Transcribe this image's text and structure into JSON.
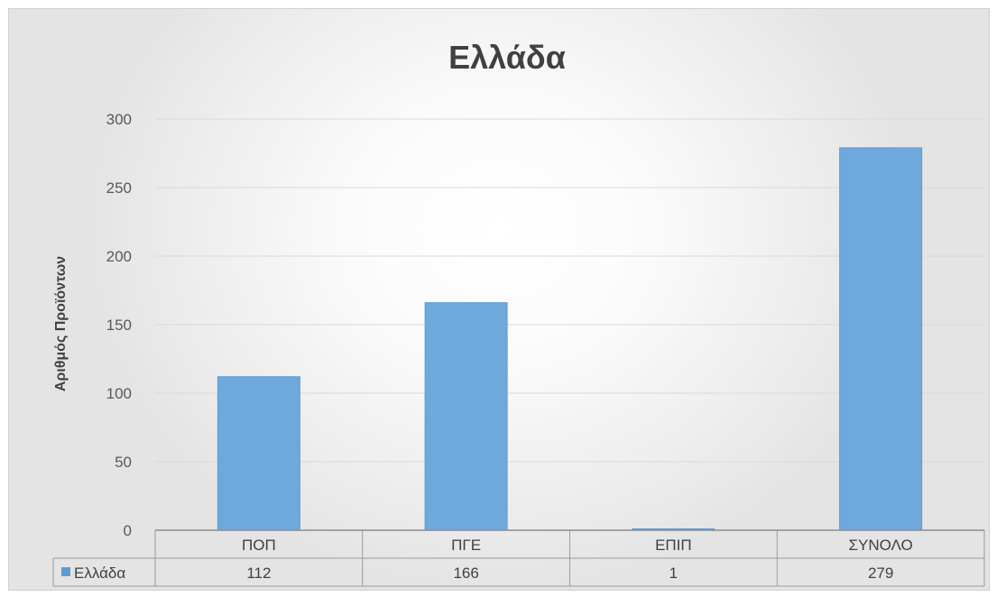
{
  "chart_data": {
    "type": "bar",
    "title": "Ελλάδα",
    "ylabel": "Αριθμός Προϊόντων",
    "xlabel": "",
    "categories": [
      "ΠΟΠ",
      "ΠΓΕ",
      "ΕΠΙΠ",
      "ΣΥΝΟΛΟ"
    ],
    "series": [
      {
        "name": "Ελλάδα",
        "values": [
          112,
          166,
          1,
          279
        ],
        "color": "#5b9bd5"
      }
    ],
    "ylim": [
      0,
      300
    ],
    "yticks": [
      "0",
      "50",
      "100",
      "150",
      "200",
      "250",
      "300"
    ],
    "table_values": [
      "112",
      "166",
      "1",
      "279"
    ],
    "grid": true,
    "legend": "data-table",
    "colors": {
      "bar": "#6fa8dc",
      "bar_border": "#5b9bd5",
      "grid": "#d9d9d9"
    }
  }
}
